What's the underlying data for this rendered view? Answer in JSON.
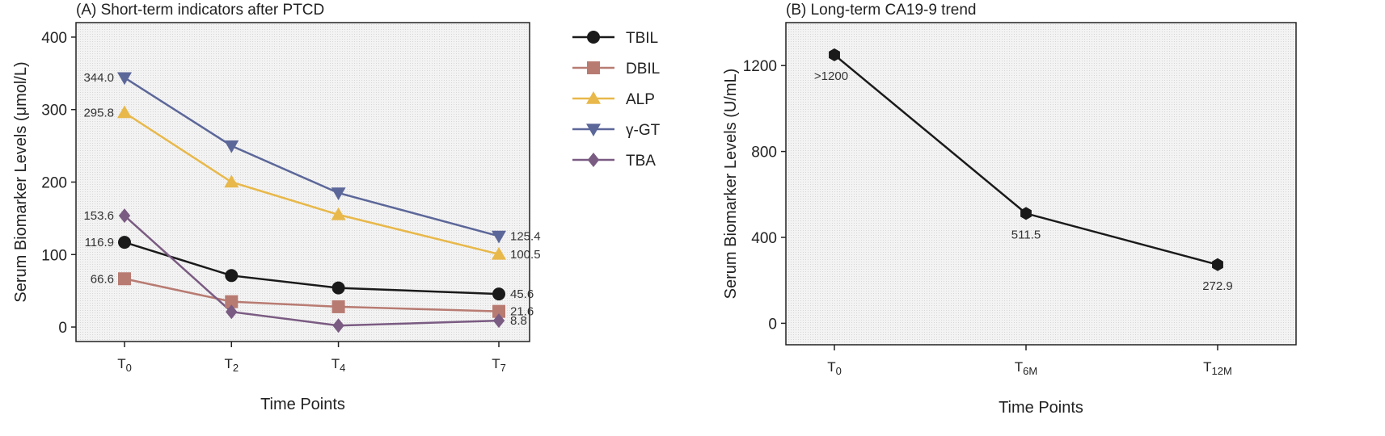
{
  "chart_data": [
    {
      "type": "line",
      "title": "(A) Short-term indicators after PTCD",
      "xlabel": "Time Points",
      "ylabel": "Serum Biomarker Levels (μmol/L)",
      "ylim": [
        -20,
        420
      ],
      "yticks": [
        "0",
        "100",
        "200",
        "300",
        "400"
      ],
      "x_values": [
        0,
        2,
        4,
        7
      ],
      "categories": [
        {
          "main": "T",
          "sub": "0"
        },
        {
          "main": "T",
          "sub": "2"
        },
        {
          "main": "T",
          "sub": "4"
        },
        {
          "main": "T",
          "sub": "7"
        }
      ],
      "grid": true,
      "legend_position": "right",
      "series": [
        {
          "name": "TBIL",
          "marker": "circle",
          "color": "#1a1a1a",
          "values": [
            116.9,
            71,
            54,
            45.6
          ],
          "labels": [
            {
              "index": 0,
              "text": "116.9",
              "side": "left"
            },
            {
              "index": 3,
              "text": "45.6",
              "side": "right"
            }
          ]
        },
        {
          "name": "DBIL",
          "marker": "square",
          "color": "#b87b72",
          "values": [
            66.6,
            35,
            28,
            21.6
          ],
          "labels": [
            {
              "index": 0,
              "text": "66.6",
              "side": "left"
            },
            {
              "index": 3,
              "text": "21.6",
              "side": "right"
            }
          ]
        },
        {
          "name": "ALP",
          "marker": "triangle-up",
          "color": "#e8b84a",
          "values": [
            295.8,
            200,
            155,
            100.5
          ],
          "labels": [
            {
              "index": 0,
              "text": "295.8",
              "side": "left"
            },
            {
              "index": 3,
              "text": "100.5",
              "side": "right"
            }
          ]
        },
        {
          "name": "γ-GT",
          "marker": "triangle-down",
          "color": "#5c6799",
          "values": [
            344.0,
            250,
            185,
            125.4
          ],
          "labels": [
            {
              "index": 0,
              "text": "344.0",
              "side": "left"
            },
            {
              "index": 3,
              "text": "125.4",
              "side": "right"
            }
          ]
        },
        {
          "name": "TBA",
          "marker": "diamond",
          "color": "#7a5b82",
          "values": [
            153.6,
            21,
            2,
            8.8
          ],
          "labels": [
            {
              "index": 0,
              "text": "153.6",
              "side": "left"
            },
            {
              "index": 3,
              "text": "8.8",
              "side": "right"
            }
          ]
        }
      ]
    },
    {
      "type": "line",
      "title": "(B) Long-term CA19-9 trend",
      "xlabel": "Time Points",
      "ylabel": "Serum Biomarker Levels (U/mL)",
      "ylim": [
        -100,
        1400
      ],
      "yticks": [
        "0",
        "400",
        "800",
        "1200"
      ],
      "x_values": [
        0,
        6,
        12
      ],
      "categories": [
        {
          "main": "T",
          "sub": "0"
        },
        {
          "main": "T",
          "sub": "6M"
        },
        {
          "main": "T",
          "sub": "12M"
        }
      ],
      "grid": true,
      "series": [
        {
          "name": "CA19-9",
          "marker": "circle",
          "color": "#1a1a1a",
          "values": [
            1250,
            511.5,
            272.9
          ],
          "labels": [
            {
              "index": 0,
              "text": ">1200",
              "side": "below"
            },
            {
              "index": 1,
              "text": "511.5",
              "side": "below"
            },
            {
              "index": 2,
              "text": "272.9",
              "side": "below"
            }
          ]
        }
      ]
    }
  ]
}
